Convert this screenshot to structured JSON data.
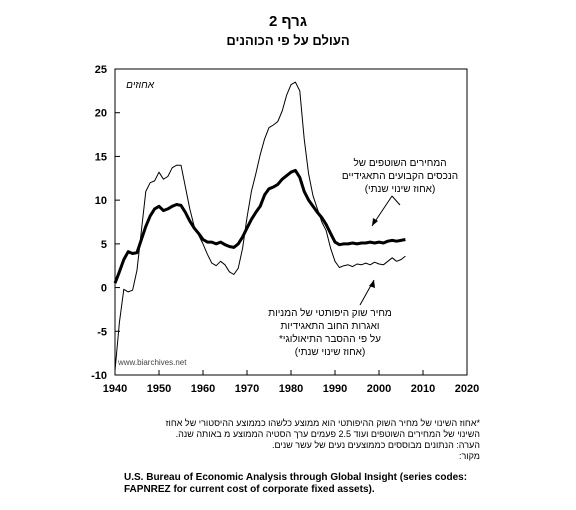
{
  "header": {
    "graph_number": "גרף 2",
    "subtitle": "העולם על פי הכוהנים"
  },
  "watermark": "www.biarchives.net",
  "chart_data": {
    "type": "line",
    "xlim": [
      1940,
      2020
    ],
    "ylim": [
      -10,
      25
    ],
    "x_ticks": [
      1940,
      1950,
      1960,
      1970,
      1980,
      1990,
      2000,
      2010,
      2020
    ],
    "y_ticks": [
      -10,
      -5,
      0,
      5,
      10,
      15,
      20,
      25
    ],
    "unit_label": "אחוזים",
    "grid": false,
    "series": [
      {
        "id": "thick",
        "name": "המחירים השוטפים של הנכסים הקבועים התאגידיים (אחוז שינוי שנתי)",
        "color": "#000000",
        "points": [
          [
            1940,
            0.5
          ],
          [
            1941,
            1.8
          ],
          [
            1942,
            3.2
          ],
          [
            1943,
            4.1
          ],
          [
            1944,
            3.9
          ],
          [
            1945,
            4.0
          ],
          [
            1946,
            5.5
          ],
          [
            1947,
            7.0
          ],
          [
            1948,
            8.2
          ],
          [
            1949,
            9.0
          ],
          [
            1950,
            9.3
          ],
          [
            1951,
            8.8
          ],
          [
            1952,
            9.0
          ],
          [
            1953,
            9.3
          ],
          [
            1954,
            9.5
          ],
          [
            1955,
            9.4
          ],
          [
            1956,
            8.6
          ],
          [
            1957,
            7.6
          ],
          [
            1958,
            6.8
          ],
          [
            1959,
            6.2
          ],
          [
            1960,
            5.5
          ],
          [
            1961,
            5.2
          ],
          [
            1962,
            5.2
          ],
          [
            1963,
            5.0
          ],
          [
            1964,
            5.2
          ],
          [
            1965,
            4.9
          ],
          [
            1966,
            4.7
          ],
          [
            1967,
            4.6
          ],
          [
            1968,
            5.0
          ],
          [
            1969,
            5.8
          ],
          [
            1970,
            6.8
          ],
          [
            1971,
            7.8
          ],
          [
            1972,
            8.6
          ],
          [
            1973,
            9.3
          ],
          [
            1974,
            10.6
          ],
          [
            1975,
            11.3
          ],
          [
            1976,
            11.5
          ],
          [
            1977,
            11.8
          ],
          [
            1978,
            12.4
          ],
          [
            1979,
            12.8
          ],
          [
            1980,
            13.2
          ],
          [
            1981,
            13.4
          ],
          [
            1982,
            12.6
          ],
          [
            1983,
            11.0
          ],
          [
            1984,
            10.0
          ],
          [
            1985,
            9.3
          ],
          [
            1986,
            8.6
          ],
          [
            1987,
            8.0
          ],
          [
            1988,
            7.2
          ],
          [
            1989,
            6.2
          ],
          [
            1990,
            5.2
          ],
          [
            1991,
            4.9
          ],
          [
            1992,
            5.0
          ],
          [
            1993,
            5.0
          ],
          [
            1994,
            5.1
          ],
          [
            1995,
            5.0
          ],
          [
            1996,
            5.1
          ],
          [
            1997,
            5.1
          ],
          [
            1998,
            5.2
          ],
          [
            1999,
            5.1
          ],
          [
            2000,
            5.2
          ],
          [
            2001,
            5.1
          ],
          [
            2002,
            5.3
          ],
          [
            2003,
            5.4
          ],
          [
            2004,
            5.3
          ],
          [
            2005,
            5.4
          ],
          [
            2006,
            5.5
          ]
        ]
      },
      {
        "id": "thin",
        "name": "מחיר שוק היפותטי של המניות ואגרות החוב התאגידיות על פי ההסבר התיאולוגי* (אחוז שינוי שנתי)",
        "color": "#000000",
        "points": [
          [
            1940,
            -9.5
          ],
          [
            1941,
            -4.0
          ],
          [
            1942,
            -0.2
          ],
          [
            1943,
            -0.5
          ],
          [
            1944,
            -0.3
          ],
          [
            1945,
            2.0
          ],
          [
            1946,
            6.5
          ],
          [
            1947,
            11.0
          ],
          [
            1948,
            12.0
          ],
          [
            1949,
            12.2
          ],
          [
            1950,
            13.2
          ],
          [
            1951,
            12.4
          ],
          [
            1952,
            12.7
          ],
          [
            1953,
            13.7
          ],
          [
            1954,
            14.0
          ],
          [
            1955,
            14.0
          ],
          [
            1956,
            11.5
          ],
          [
            1957,
            9.0
          ],
          [
            1958,
            7.0
          ],
          [
            1959,
            6.0
          ],
          [
            1960,
            5.0
          ],
          [
            1961,
            3.8
          ],
          [
            1962,
            2.8
          ],
          [
            1963,
            2.5
          ],
          [
            1964,
            3.0
          ],
          [
            1965,
            2.6
          ],
          [
            1966,
            1.8
          ],
          [
            1967,
            1.5
          ],
          [
            1968,
            2.2
          ],
          [
            1969,
            4.5
          ],
          [
            1970,
            8.0
          ],
          [
            1971,
            11.0
          ],
          [
            1972,
            13.0
          ],
          [
            1973,
            15.2
          ],
          [
            1974,
            17.0
          ],
          [
            1975,
            18.3
          ],
          [
            1976,
            18.6
          ],
          [
            1977,
            19.0
          ],
          [
            1978,
            20.2
          ],
          [
            1979,
            22.0
          ],
          [
            1980,
            23.2
          ],
          [
            1981,
            23.5
          ],
          [
            1982,
            22.5
          ],
          [
            1983,
            17.0
          ],
          [
            1984,
            13.0
          ],
          [
            1985,
            10.5
          ],
          [
            1986,
            9.0
          ],
          [
            1987,
            7.5
          ],
          [
            1988,
            6.5
          ],
          [
            1989,
            4.5
          ],
          [
            1990,
            3.0
          ],
          [
            1991,
            2.3
          ],
          [
            1992,
            2.5
          ],
          [
            1993,
            2.6
          ],
          [
            1994,
            2.4
          ],
          [
            1995,
            2.7
          ],
          [
            1996,
            2.6
          ],
          [
            1997,
            2.8
          ],
          [
            1998,
            2.6
          ],
          [
            1999,
            2.9
          ],
          [
            2000,
            2.7
          ],
          [
            2001,
            2.6
          ],
          [
            2002,
            3.0
          ],
          [
            2003,
            3.4
          ],
          [
            2004,
            3.0
          ],
          [
            2005,
            3.2
          ],
          [
            2006,
            3.6
          ]
        ]
      }
    ],
    "annotations": {
      "thick_label": [
        "המחירים השוטפים של",
        "הנכסים הקבועים התאגידיים",
        "(אחוז שינוי שנתי)"
      ],
      "thin_label": [
        "מחיר שוק היפותטי של המניות",
        "ואגרות החוב התאגידיות",
        "על פי ההסבר התיאולוגי*",
        "(אחוז שינוי שנתי)"
      ]
    }
  },
  "notes": {
    "line1": "*אחוז השינוי של מחיר השוק ההיפותטי הוא ממוצע כלשהו כממוצע ההיסטורי של אחוז",
    "line2": "השינוי של המחירים השוטפים ועוד 2.5 פעמים ערך הסטיה הממוצע מ באותה שנה.",
    "line3": "הערה: הנתונים מבוססים כממוצעים נעים של עשר שנים.",
    "line4": "מקור:",
    "source_en_1": "U.S. Bureau of Economic Analysis through Global Insight (series codes:",
    "source_en_2": "FAPNREZ for current cost of corporate fixed assets)."
  }
}
